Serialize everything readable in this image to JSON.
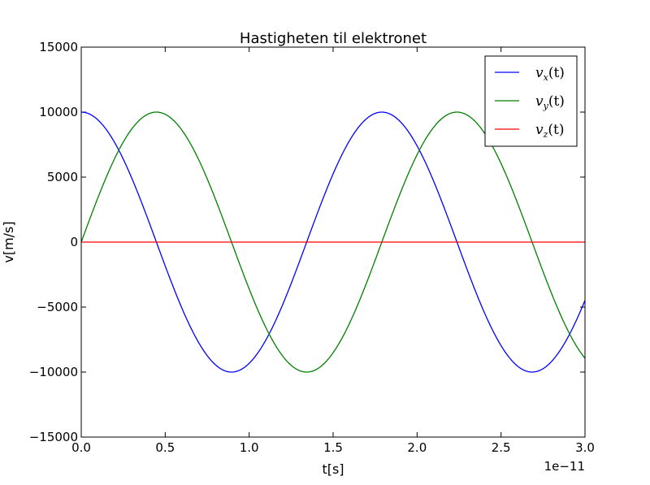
{
  "chart_data": {
    "type": "line",
    "title": "Hastigheten til elektronet",
    "xlabel": "t[s]",
    "ylabel": "v[m/s]",
    "x_offset_label": "1e−11",
    "xlim": [
      0.0,
      3.0
    ],
    "ylim": [
      -15000,
      15000
    ],
    "x_unit_scale": 1e-11,
    "xticks": [
      0.0,
      0.5,
      1.0,
      1.5,
      2.0,
      2.5,
      3.0
    ],
    "xtick_labels": [
      "0.0",
      "0.5",
      "1.0",
      "1.5",
      "2.0",
      "2.5",
      "3.0"
    ],
    "yticks": [
      -15000,
      -10000,
      -5000,
      0,
      5000,
      10000,
      15000
    ],
    "ytick_labels": [
      "−15000",
      "−10000",
      "−5000",
      "0",
      "5000",
      "10000",
      "15000"
    ],
    "grid": false,
    "legend_position": "top-right",
    "series": [
      {
        "name": "v_x(t)",
        "legend_main": "v",
        "legend_sub": "x",
        "legend_tail": "(t)",
        "color": "#0000ff",
        "function": "cos",
        "amplitude": 10000,
        "period": 1.79
      },
      {
        "name": "v_y(t)",
        "legend_main": "v",
        "legend_sub": "y",
        "legend_tail": "(t)",
        "color": "#008000",
        "function": "sin",
        "amplitude": 10000,
        "period": 1.79
      },
      {
        "name": "v_z(t)",
        "legend_main": "v",
        "legend_sub": "z",
        "legend_tail": "(t)",
        "color": "#ff0000",
        "function": "zero",
        "amplitude": 0,
        "period": 1.79
      }
    ]
  }
}
